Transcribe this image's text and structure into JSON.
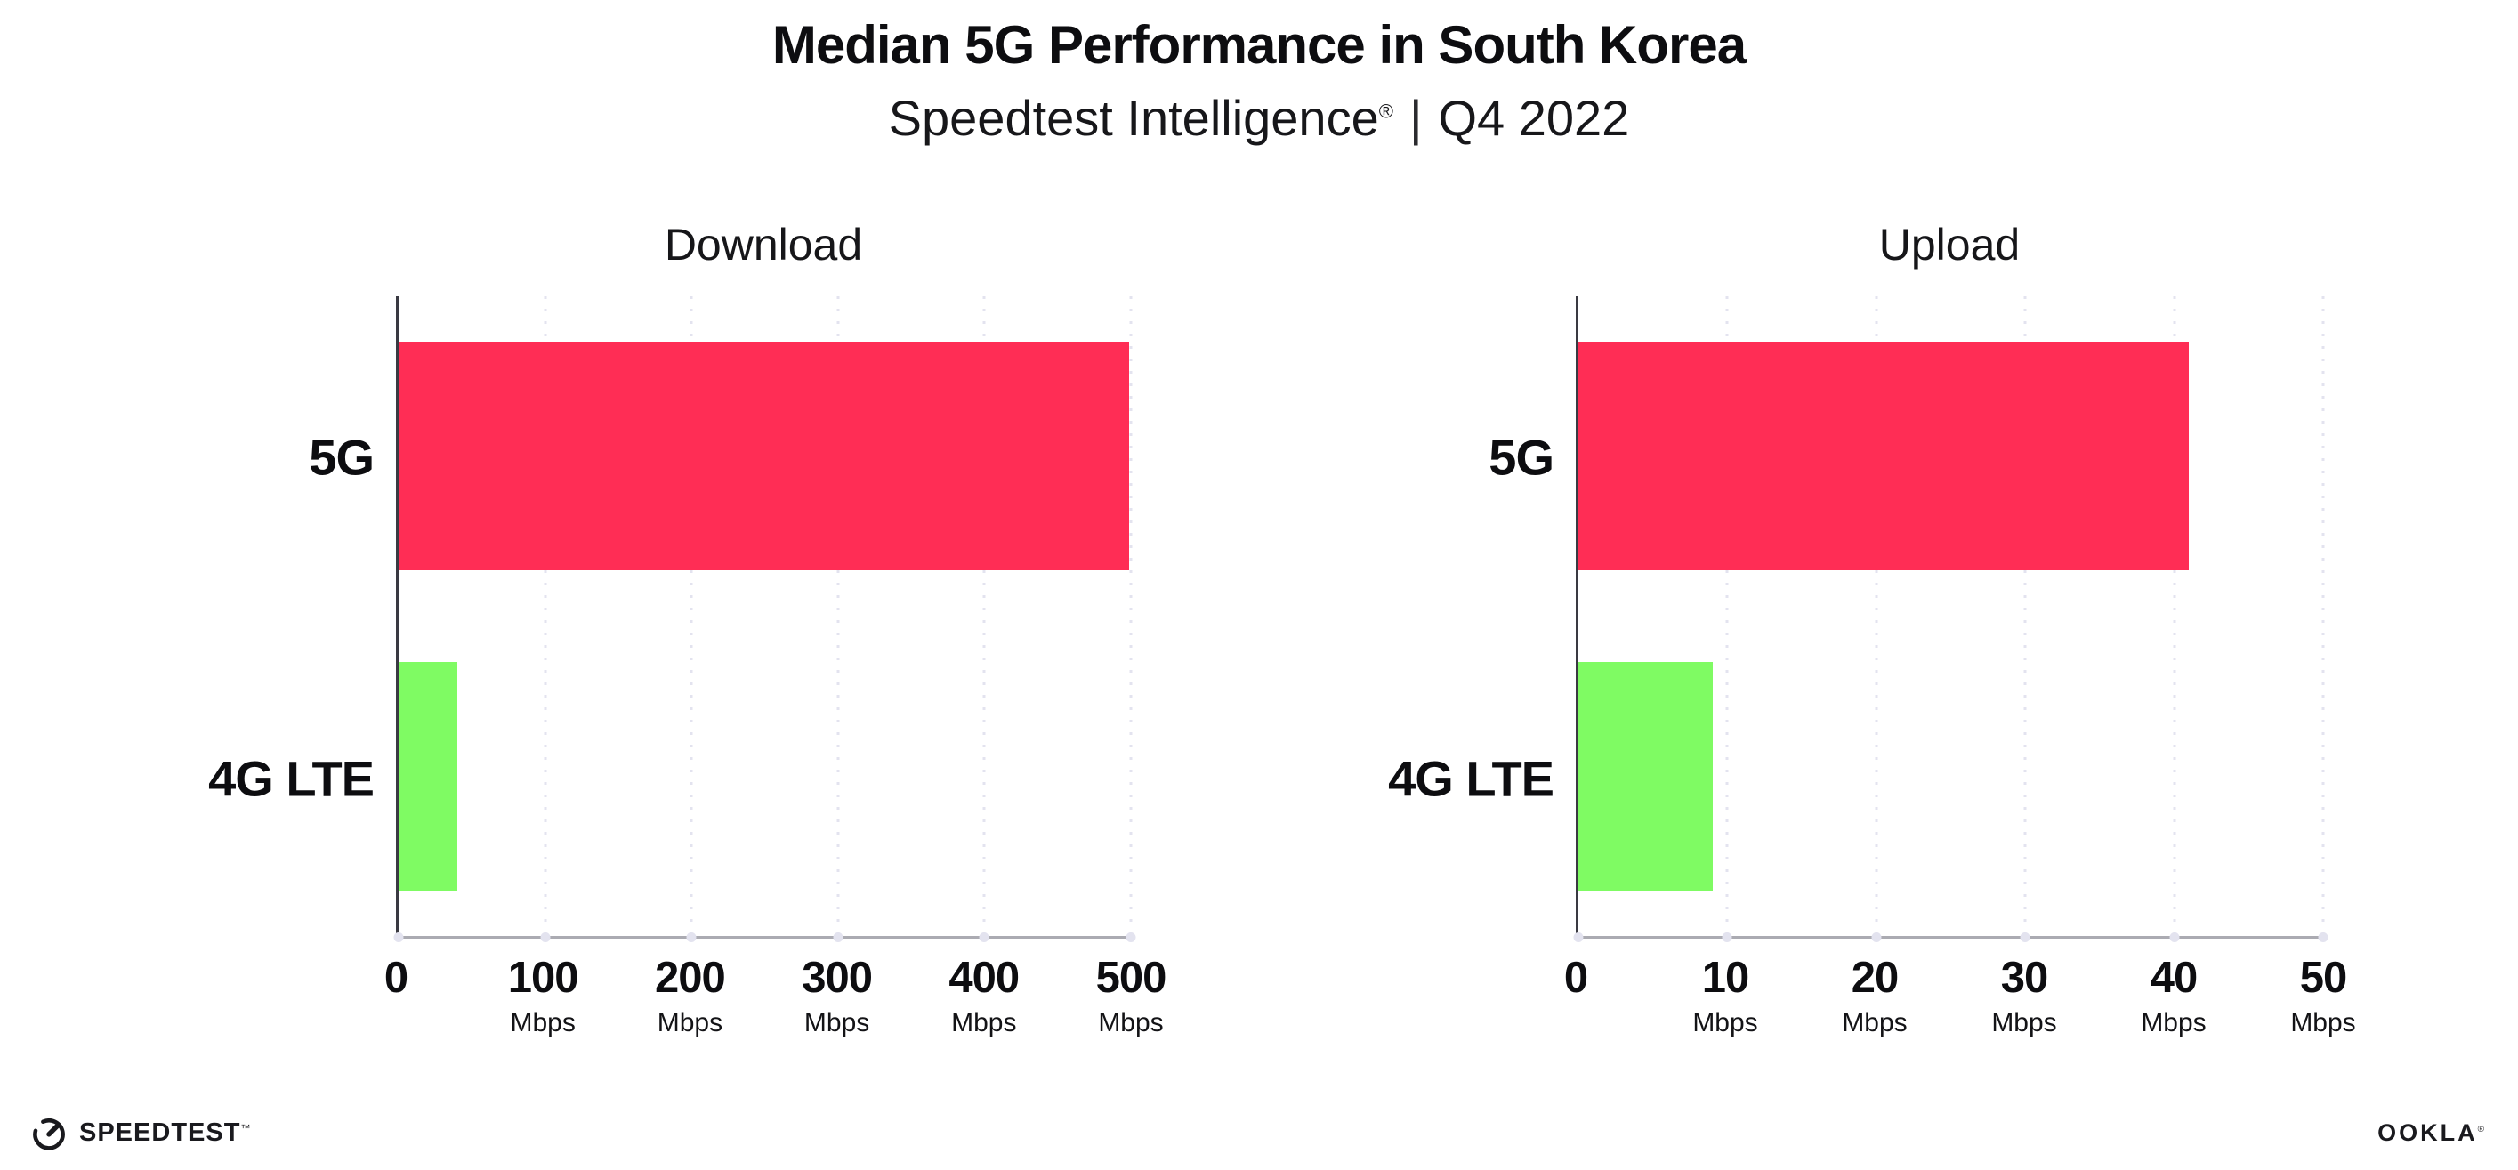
{
  "page": {
    "title": "Median 5G Performance in South Korea",
    "subtitle": {
      "brand": "Speedtest Intelligence",
      "registered_mark": "®",
      "separator": "|",
      "period": "Q4 2022"
    }
  },
  "footer": {
    "speedtest_logo_text": "SPEEDTEST",
    "speedtest_trademark": "™",
    "ookla_logo_text": "OOKLA",
    "ookla_trademark": "®"
  },
  "colors": {
    "bar_5g": "#FF2D55",
    "bar_4g_lte": "#7FFB63",
    "gridline": "#E3E3EF",
    "y_axis": "#3A3A42",
    "x_axis": "#ABABB2",
    "text": "#111114"
  },
  "chart_data": [
    {
      "type": "bar",
      "orientation": "horizontal",
      "title": "Download",
      "categories": [
        "5G",
        "4G LTE"
      ],
      "values": [
        499,
        40
      ],
      "unit": "Mbps",
      "xlim": [
        0,
        500
      ],
      "xticks": [
        0,
        100,
        200,
        300,
        400,
        500
      ],
      "grid": true,
      "legend": "none",
      "bar_colors": [
        "#FF2D55",
        "#7FFB63"
      ]
    },
    {
      "type": "bar",
      "orientation": "horizontal",
      "title": "Upload",
      "categories": [
        "5G",
        "4G LTE"
      ],
      "values": [
        41,
        9
      ],
      "unit": "Mbps",
      "xlim": [
        0,
        50
      ],
      "xticks": [
        0,
        10,
        20,
        30,
        40,
        50
      ],
      "grid": true,
      "legend": "none",
      "bar_colors": [
        "#FF2D55",
        "#7FFB63"
      ]
    }
  ]
}
